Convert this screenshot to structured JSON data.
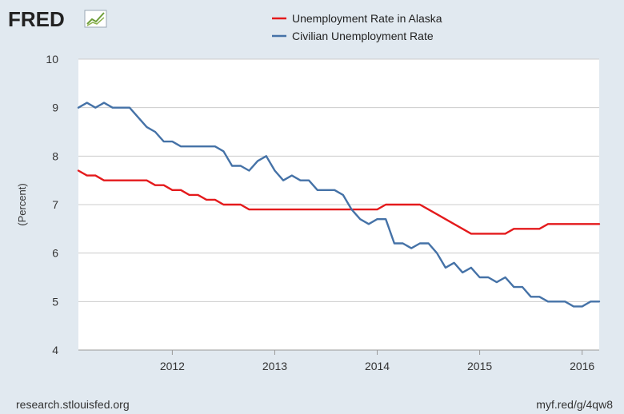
{
  "logo": {
    "text": "FRED",
    "icon": "fred-chart-icon"
  },
  "footer": {
    "source": "research.stlouisfed.org",
    "short_url": "myf.red/g/4qw8"
  },
  "chart_data": {
    "type": "line",
    "ylabel": "(Percent)",
    "xlabel": "",
    "ylim": [
      4,
      10
    ],
    "xlim": [
      "2011-02",
      "2016-03"
    ],
    "yticks": [
      "4",
      "5",
      "6",
      "7",
      "8",
      "9",
      "10"
    ],
    "xticks": [
      "2012",
      "2013",
      "2014",
      "2015",
      "2016"
    ],
    "grid": "horizontal",
    "legend_position": "top",
    "series": [
      {
        "name": "Unemployment Rate in Alaska",
        "color": "#e41a1c",
        "x": [
          "2011-02",
          "2011-03",
          "2011-04",
          "2011-05",
          "2011-06",
          "2011-07",
          "2011-08",
          "2011-09",
          "2011-10",
          "2011-11",
          "2011-12",
          "2012-01",
          "2012-02",
          "2012-03",
          "2012-04",
          "2012-05",
          "2012-06",
          "2012-07",
          "2012-08",
          "2012-09",
          "2012-10",
          "2012-11",
          "2012-12",
          "2013-01",
          "2013-02",
          "2013-03",
          "2013-04",
          "2013-05",
          "2013-06",
          "2013-07",
          "2013-08",
          "2013-09",
          "2013-10",
          "2013-11",
          "2013-12",
          "2014-01",
          "2014-02",
          "2014-03",
          "2014-04",
          "2014-05",
          "2014-06",
          "2014-07",
          "2014-08",
          "2014-09",
          "2014-10",
          "2014-11",
          "2014-12",
          "2015-01",
          "2015-02",
          "2015-03",
          "2015-04",
          "2015-05",
          "2015-06",
          "2015-07",
          "2015-08",
          "2015-09",
          "2015-10",
          "2015-11",
          "2015-12",
          "2016-01",
          "2016-02",
          "2016-03"
        ],
        "values": [
          7.7,
          7.6,
          7.6,
          7.5,
          7.5,
          7.5,
          7.5,
          7.5,
          7.5,
          7.4,
          7.4,
          7.3,
          7.3,
          7.2,
          7.2,
          7.1,
          7.1,
          7.0,
          7.0,
          7.0,
          6.9,
          6.9,
          6.9,
          6.9,
          6.9,
          6.9,
          6.9,
          6.9,
          6.9,
          6.9,
          6.9,
          6.9,
          6.9,
          6.9,
          6.9,
          6.9,
          7.0,
          7.0,
          7.0,
          7.0,
          7.0,
          6.9,
          6.8,
          6.7,
          6.6,
          6.5,
          6.4,
          6.4,
          6.4,
          6.4,
          6.4,
          6.5,
          6.5,
          6.5,
          6.5,
          6.6,
          6.6,
          6.6,
          6.6,
          6.6,
          6.6,
          6.6
        ]
      },
      {
        "name": "Civilian Unemployment Rate",
        "color": "#4572a7",
        "x": [
          "2011-02",
          "2011-03",
          "2011-04",
          "2011-05",
          "2011-06",
          "2011-07",
          "2011-08",
          "2011-09",
          "2011-10",
          "2011-11",
          "2011-12",
          "2012-01",
          "2012-02",
          "2012-03",
          "2012-04",
          "2012-05",
          "2012-06",
          "2012-07",
          "2012-08",
          "2012-09",
          "2012-10",
          "2012-11",
          "2012-12",
          "2013-01",
          "2013-02",
          "2013-03",
          "2013-04",
          "2013-05",
          "2013-06",
          "2013-07",
          "2013-08",
          "2013-09",
          "2013-10",
          "2013-11",
          "2013-12",
          "2014-01",
          "2014-02",
          "2014-03",
          "2014-04",
          "2014-05",
          "2014-06",
          "2014-07",
          "2014-08",
          "2014-09",
          "2014-10",
          "2014-11",
          "2014-12",
          "2015-01",
          "2015-02",
          "2015-03",
          "2015-04",
          "2015-05",
          "2015-06",
          "2015-07",
          "2015-08",
          "2015-09",
          "2015-10",
          "2015-11",
          "2015-12",
          "2016-01",
          "2016-02",
          "2016-03"
        ],
        "values": [
          9.0,
          9.1,
          9.0,
          9.1,
          9.0,
          9.0,
          9.0,
          8.8,
          8.6,
          8.5,
          8.3,
          8.3,
          8.2,
          8.2,
          8.2,
          8.2,
          8.2,
          8.1,
          7.8,
          7.8,
          7.7,
          7.9,
          8.0,
          7.7,
          7.5,
          7.6,
          7.5,
          7.5,
          7.3,
          7.3,
          7.3,
          7.2,
          6.9,
          6.7,
          6.6,
          6.7,
          6.7,
          6.2,
          6.2,
          6.1,
          6.2,
          6.2,
          6.0,
          5.7,
          5.8,
          5.6,
          5.7,
          5.5,
          5.5,
          5.4,
          5.5,
          5.3,
          5.3,
          5.1,
          5.1,
          5.0,
          5.0,
          5.0,
          4.9,
          4.9,
          5.0,
          5.0
        ]
      }
    ]
  }
}
